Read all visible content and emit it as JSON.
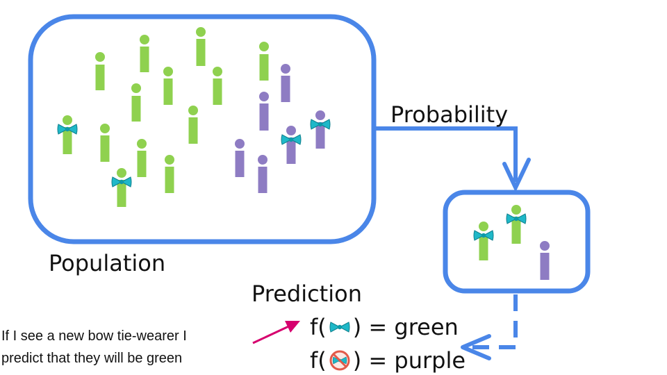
{
  "labels": {
    "population": "Population",
    "probability": "Probability",
    "prediction": "Prediction"
  },
  "formulas": [
    {
      "prefix": "f(",
      "icon": "bow-tie-icon",
      "suffix": ") = green"
    },
    {
      "prefix": "f(",
      "icon": "no-bow-tie-icon",
      "suffix": ") = purple"
    }
  ],
  "note": {
    "line1": "If I see a new bow tie-wearer I",
    "line2": "predict that they will be green"
  },
  "colors": {
    "box_border": "#4a86e8",
    "green_person": "#8fd14f",
    "purple_person": "#8e7cc3",
    "bow_tie": "#1fb8c8",
    "pointer_arrow": "#d6006e",
    "forbidden": "#e25a4a"
  }
}
